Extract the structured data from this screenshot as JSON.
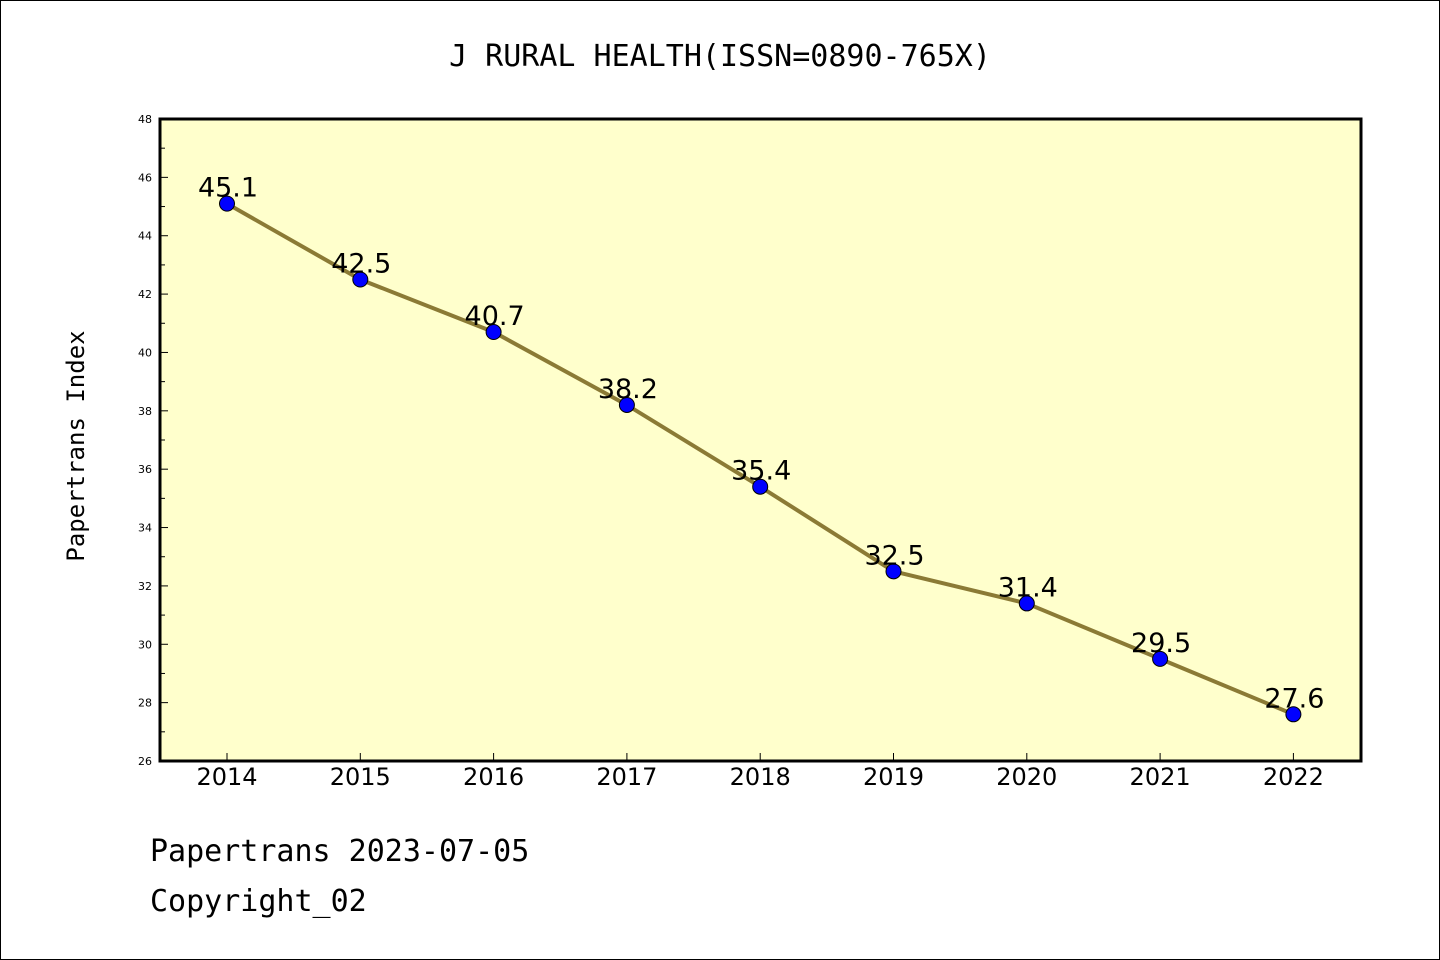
{
  "colors": {
    "plot_background": "#ffffcc",
    "line": "#8b7a35",
    "marker": "#0000ff",
    "axis": "#000000"
  },
  "footer": {
    "date_text": "Papertrans 2023-07-05",
    "copyright_text": "Copyright_02"
  },
  "chart_data": {
    "type": "line",
    "title": "J RURAL HEALTH(ISSN=0890-765X)",
    "xlabel": "",
    "ylabel": "Papertrans Index",
    "categories": [
      "2014",
      "2015",
      "2016",
      "2017",
      "2018",
      "2019",
      "2020",
      "2021",
      "2022"
    ],
    "series": [
      {
        "values": [
          45.1,
          42.5,
          40.7,
          38.2,
          35.4,
          32.5,
          31.4,
          29.5,
          27.6
        ],
        "labels": [
          "45.1",
          "42.5",
          "40.7",
          "38.2",
          "35.4",
          "32.5",
          "31.4",
          "29.5",
          "27.6"
        ]
      }
    ],
    "ylim": [
      26,
      48
    ],
    "yticks": [
      "26",
      "28",
      "30",
      "32",
      "34",
      "36",
      "38",
      "40",
      "42",
      "44",
      "46",
      "48"
    ],
    "grid": false,
    "legend": "none"
  }
}
